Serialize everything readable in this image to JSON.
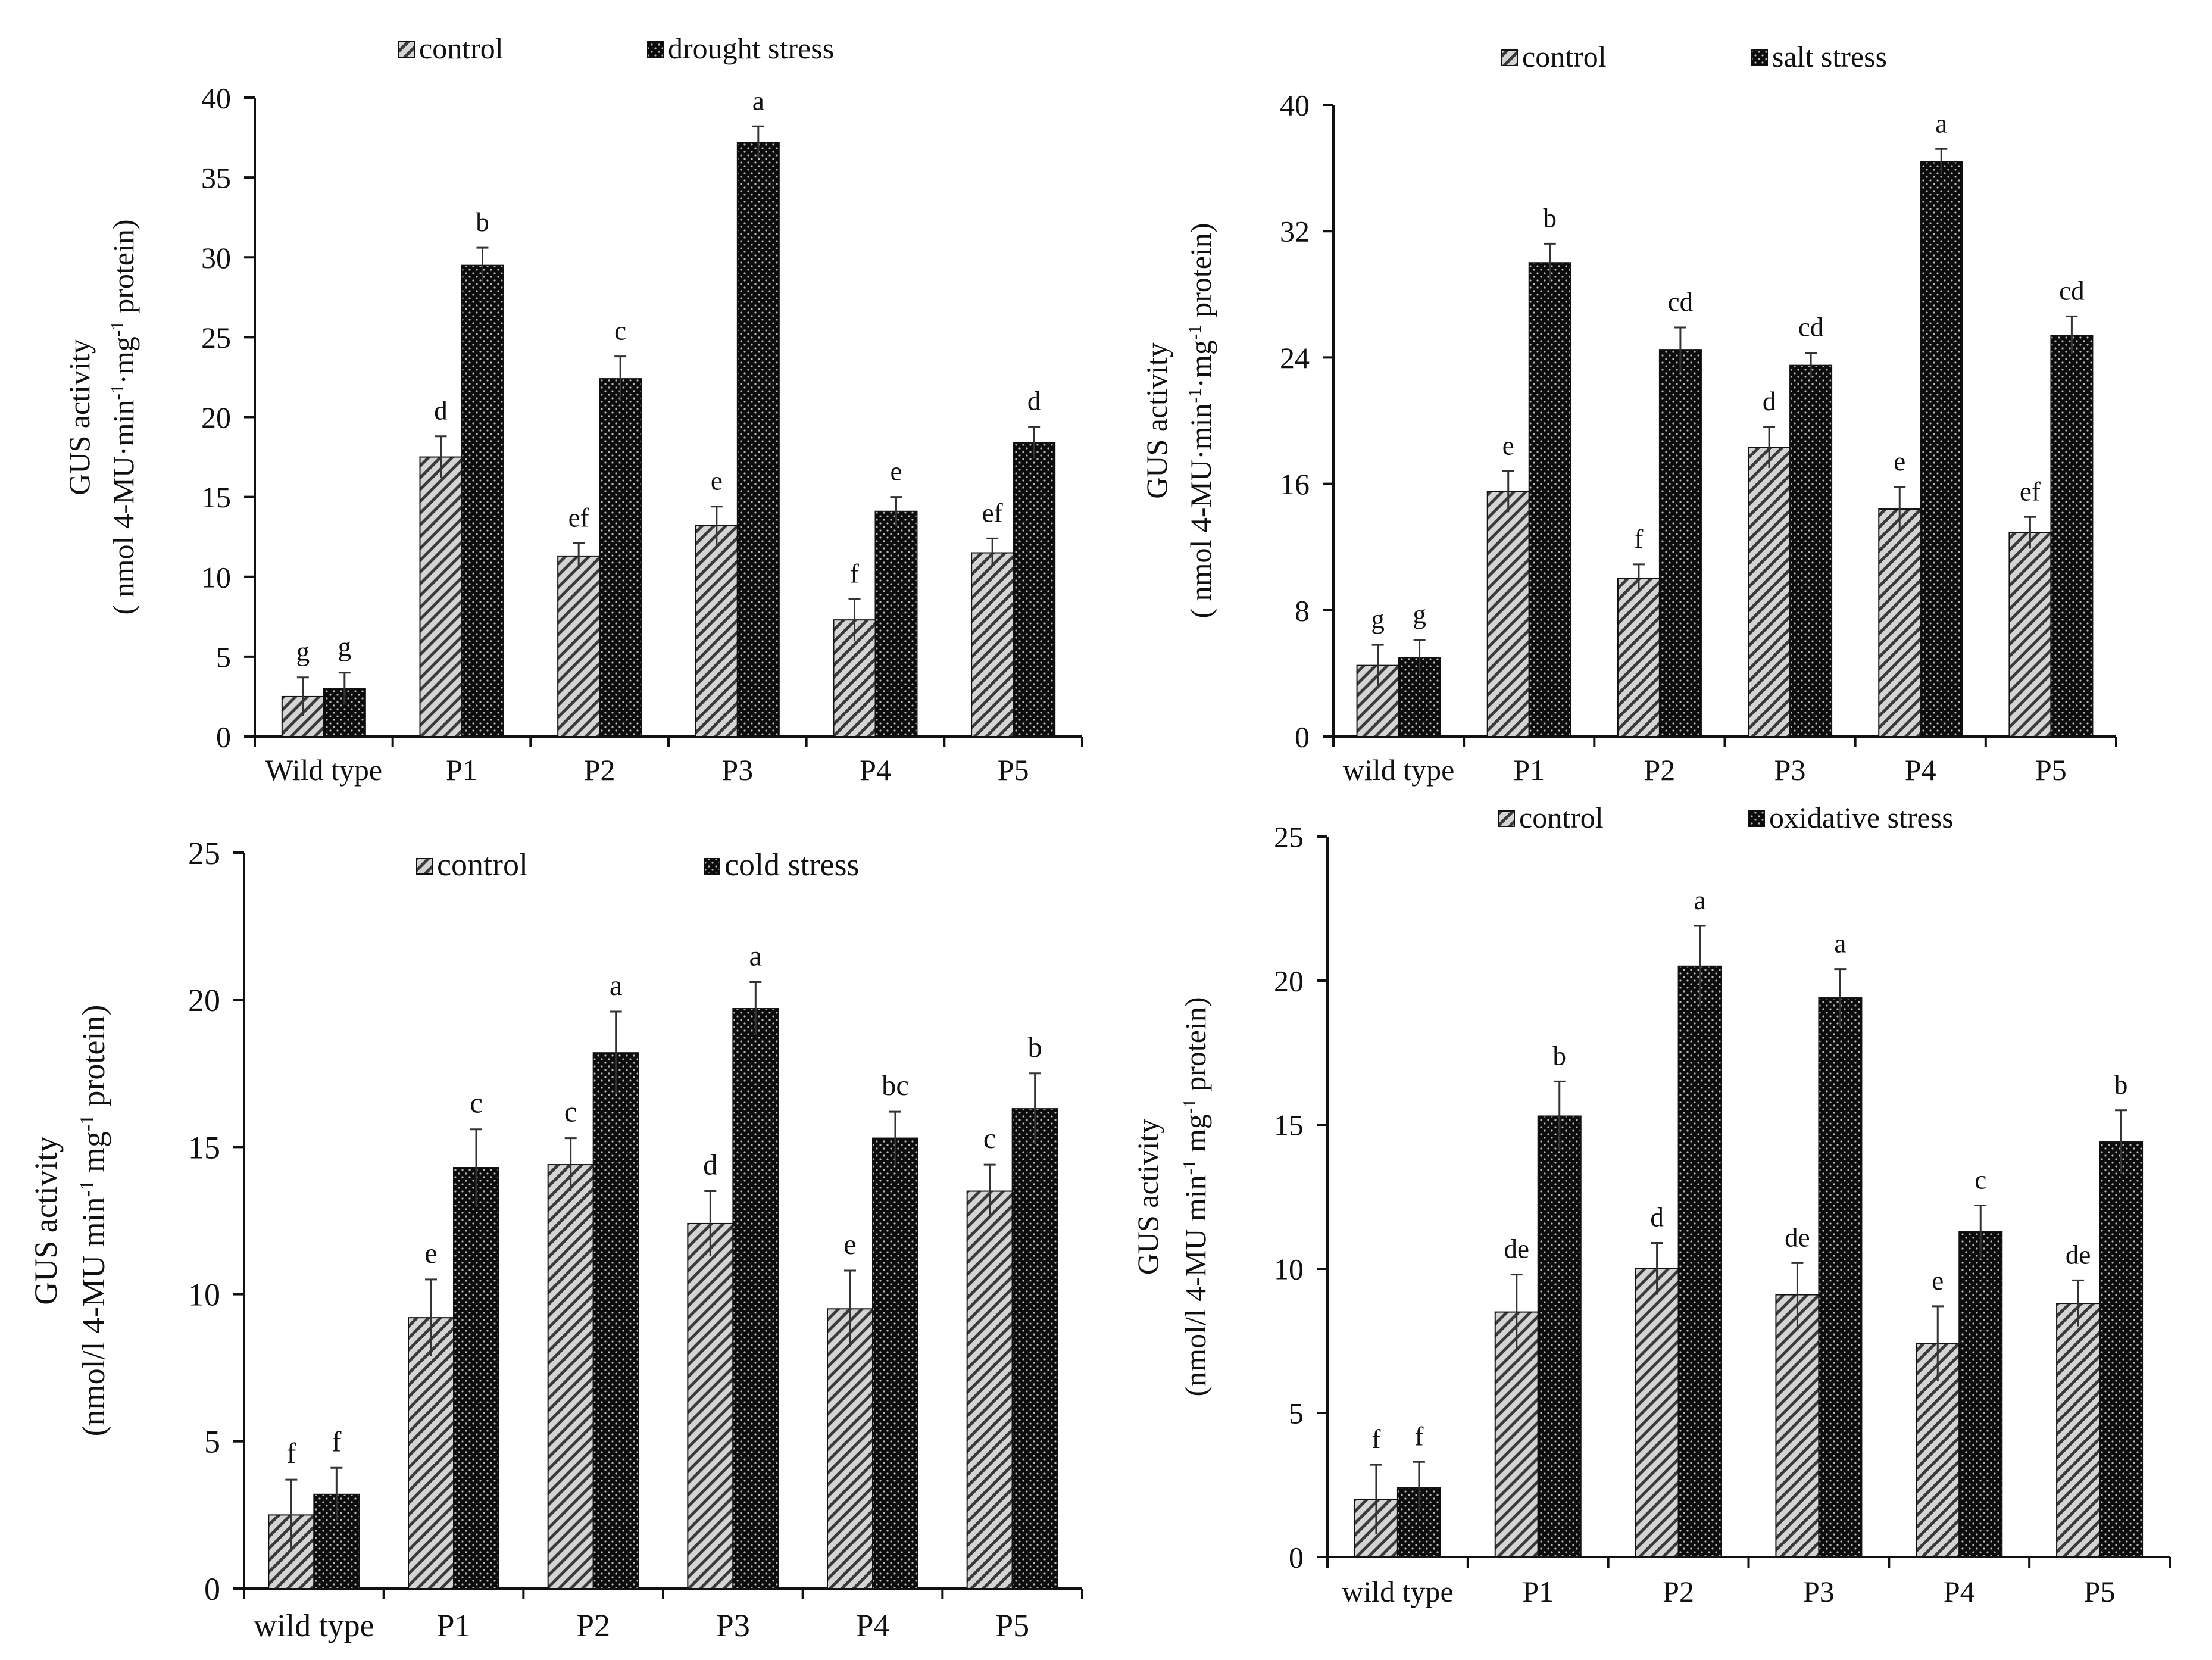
{
  "colors": {
    "axis": "#111111",
    "control_fill": "#d4d4d4",
    "control_hatch": "#3a3a3a",
    "stress_fill": "#0c0c0c",
    "stress_dots": "#bdbdbd",
    "errorbar": "#333333"
  },
  "chart_data": [
    {
      "type": "bar",
      "panel": "top-left",
      "ylabel_line1": "GUS activity",
      "ylabel_line2_pre": "( nmol 4-MU·min",
      "ylabel_line2_mid1": "·mg",
      "ylabel_line2_post": " protein)",
      "ylabel_sup": "-1",
      "categories": [
        "Wild type",
        "P1",
        "P2",
        "P3",
        "P4",
        "P5"
      ],
      "ylim": [
        0,
        40
      ],
      "yticks": [
        0,
        5,
        10,
        15,
        20,
        25,
        30,
        35,
        40
      ],
      "legend_position": "top",
      "series": [
        {
          "name": "control",
          "values": [
            2.5,
            17.5,
            11.3,
            13.2,
            7.3,
            11.5
          ],
          "errors": [
            1.2,
            1.3,
            0.8,
            1.2,
            1.3,
            0.9
          ],
          "letters": [
            "g",
            "d",
            "ef",
            "e",
            "f",
            "ef"
          ]
        },
        {
          "name": "drought stress",
          "values": [
            3.0,
            29.5,
            22.4,
            37.2,
            14.1,
            18.4
          ],
          "errors": [
            1.0,
            1.1,
            1.4,
            1.0,
            0.9,
            1.0
          ],
          "letters": [
            "g",
            "b",
            "c",
            "a",
            "e",
            "d"
          ]
        }
      ]
    },
    {
      "type": "bar",
      "panel": "top-right",
      "ylabel_line1": "GUS activity",
      "ylabel_line2_pre": "( nmol 4-MU·min",
      "ylabel_line2_mid1": "·mg",
      "ylabel_line2_post": " protein)",
      "ylabel_sup": "-1",
      "categories": [
        "wild type",
        "P1",
        "P2",
        "P3",
        "P4",
        "P5"
      ],
      "ylim": [
        0,
        40
      ],
      "yticks": [
        0,
        8,
        16,
        24,
        32,
        40
      ],
      "legend_position": "top",
      "series": [
        {
          "name": "control",
          "values": [
            4.5,
            15.5,
            10.0,
            18.3,
            14.4,
            12.9
          ],
          "errors": [
            1.3,
            1.3,
            0.9,
            1.3,
            1.4,
            1.0
          ],
          "letters": [
            "g",
            "e",
            "f",
            "d",
            "e",
            "ef"
          ]
        },
        {
          "name": "salt stress",
          "values": [
            5.0,
            30.0,
            24.5,
            23.5,
            36.4,
            25.4
          ],
          "errors": [
            1.1,
            1.2,
            1.4,
            0.8,
            0.8,
            1.2
          ],
          "letters": [
            "g",
            "b",
            "cd",
            "cd",
            "a",
            "cd"
          ]
        }
      ]
    },
    {
      "type": "bar",
      "panel": "bottom-left",
      "ylabel_line1": "GUS activity",
      "ylabel_line2_pre": "(nmol/l 4-MU min",
      "ylabel_line2_mid1": " mg",
      "ylabel_line2_post": " protein)",
      "ylabel_sup": "-1",
      "categories": [
        "wild type",
        "P1",
        "P2",
        "P3",
        "P4",
        "P5"
      ],
      "ylim": [
        0,
        25
      ],
      "yticks": [
        0,
        5,
        10,
        15,
        20,
        25
      ],
      "legend_position": "top",
      "series": [
        {
          "name": "control",
          "values": [
            2.5,
            9.2,
            14.4,
            12.4,
            9.5,
            13.5
          ],
          "errors": [
            1.2,
            1.3,
            0.9,
            1.1,
            1.3,
            0.9
          ],
          "letters": [
            "f",
            "e",
            "c",
            "d",
            "e",
            "c"
          ]
        },
        {
          "name": "cold stress",
          "values": [
            3.2,
            14.3,
            18.2,
            19.7,
            15.3,
            16.3
          ],
          "errors": [
            0.9,
            1.3,
            1.4,
            0.9,
            0.9,
            1.2
          ],
          "letters": [
            "f",
            "c",
            "a",
            "a",
            "bc",
            "b"
          ]
        }
      ]
    },
    {
      "type": "bar",
      "panel": "bottom-right",
      "ylabel_line1": "GUS activity",
      "ylabel_line2_pre": "(nmol/l 4-MU min",
      "ylabel_line2_mid1": " mg",
      "ylabel_line2_post": " protein)",
      "ylabel_sup": "-1",
      "categories": [
        "wild type",
        "P1",
        "P2",
        "P3",
        "P4",
        "P5"
      ],
      "ylim": [
        0,
        25
      ],
      "yticks": [
        0,
        5,
        10,
        15,
        20,
        25
      ],
      "legend_position": "top",
      "series": [
        {
          "name": "control",
          "values": [
            2.0,
            8.5,
            10.0,
            9.1,
            7.4,
            8.8
          ],
          "errors": [
            1.2,
            1.3,
            0.9,
            1.1,
            1.3,
            0.8
          ],
          "letters": [
            "f",
            "de",
            "d",
            "de",
            "e",
            "de"
          ]
        },
        {
          "name": "oxidative stress",
          "values": [
            2.4,
            15.3,
            20.5,
            19.4,
            11.3,
            14.4
          ],
          "errors": [
            0.9,
            1.2,
            1.4,
            1.0,
            0.9,
            1.1
          ],
          "letters": [
            "f",
            "b",
            "a",
            "a",
            "c",
            "b"
          ]
        }
      ]
    }
  ]
}
